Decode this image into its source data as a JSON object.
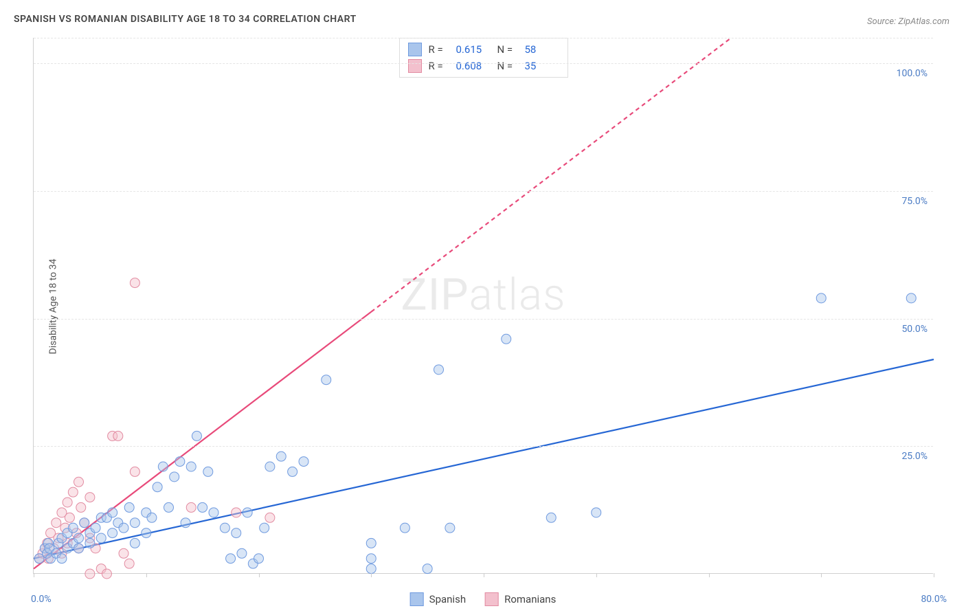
{
  "title": "SPANISH VS ROMANIAN DISABILITY AGE 18 TO 34 CORRELATION CHART",
  "source": "Source: ZipAtlas.com",
  "ylabel": "Disability Age 18 to 34",
  "watermark_zip": "ZIP",
  "watermark_atlas": "atlas",
  "chart": {
    "type": "scatter",
    "xlim": [
      0,
      80
    ],
    "ylim": [
      0,
      105
    ],
    "xtick_labels": {
      "0": "0.0%",
      "80": "80.0%"
    },
    "xtick_positions": [
      0,
      10,
      20,
      30,
      40,
      50,
      60,
      70,
      80
    ],
    "ytick_labels": {
      "25": "25.0%",
      "50": "50.0%",
      "75": "75.0%",
      "100": "100.0%"
    },
    "ytick_positions": [
      25,
      50,
      75,
      100,
      105
    ],
    "grid_color": "#e5e5e5",
    "background_color": "#ffffff",
    "marker_radius": 7,
    "marker_opacity": 0.45,
    "line_width": 2.2
  },
  "series": {
    "spanish": {
      "label": "Spanish",
      "color_fill": "#a9c5ec",
      "color_stroke": "#6f9adf",
      "line_color": "#2566d4",
      "R": "0.615",
      "N": "58",
      "trend": {
        "x1": 0,
        "y1": 3,
        "x2": 80,
        "y2": 42,
        "dashed_from_x": null
      },
      "points": [
        [
          0.5,
          3
        ],
        [
          1,
          5
        ],
        [
          1.2,
          4
        ],
        [
          1.3,
          6
        ],
        [
          1.4,
          5
        ],
        [
          1.5,
          3
        ],
        [
          2,
          4
        ],
        [
          2.2,
          6
        ],
        [
          2.5,
          7
        ],
        [
          2.5,
          3
        ],
        [
          3,
          8
        ],
        [
          3,
          5
        ],
        [
          3.5,
          6
        ],
        [
          3.5,
          9
        ],
        [
          4,
          7
        ],
        [
          4,
          5
        ],
        [
          4.5,
          10
        ],
        [
          5,
          8
        ],
        [
          5,
          6
        ],
        [
          5.5,
          9
        ],
        [
          6,
          11
        ],
        [
          6,
          7
        ],
        [
          6.5,
          11
        ],
        [
          7,
          8
        ],
        [
          7,
          12
        ],
        [
          7.5,
          10
        ],
        [
          8,
          9
        ],
        [
          8.5,
          13
        ],
        [
          9,
          10
        ],
        [
          9,
          6
        ],
        [
          10,
          12
        ],
        [
          10,
          8
        ],
        [
          10.5,
          11
        ],
        [
          11,
          17
        ],
        [
          11.5,
          21
        ],
        [
          12,
          13
        ],
        [
          12.5,
          19
        ],
        [
          13,
          22
        ],
        [
          13.5,
          10
        ],
        [
          14,
          21
        ],
        [
          14.5,
          27
        ],
        [
          15,
          13
        ],
        [
          15.5,
          20
        ],
        [
          16,
          12
        ],
        [
          17,
          9
        ],
        [
          17.5,
          3
        ],
        [
          18,
          8
        ],
        [
          18.5,
          4
        ],
        [
          19,
          12
        ],
        [
          19.5,
          2
        ],
        [
          20,
          3
        ],
        [
          20.5,
          9
        ],
        [
          21,
          21
        ],
        [
          22,
          23
        ],
        [
          23,
          20
        ],
        [
          24,
          22
        ],
        [
          26,
          38
        ],
        [
          30,
          6
        ],
        [
          30,
          3
        ],
        [
          30,
          1
        ],
        [
          33,
          9
        ],
        [
          35,
          1
        ],
        [
          36,
          40
        ],
        [
          37,
          9
        ],
        [
          42,
          46
        ],
        [
          46,
          11
        ],
        [
          50,
          12
        ],
        [
          70,
          54
        ],
        [
          78,
          54
        ]
      ]
    },
    "romanians": {
      "label": "Romanians",
      "color_fill": "#f3c0cd",
      "color_stroke": "#e28ba1",
      "line_color": "#e84a7a",
      "R": "0.608",
      "N": "35",
      "trend": {
        "x1": 0,
        "y1": 1,
        "x2": 62,
        "y2": 105,
        "dashed_from_x": 30
      },
      "points": [
        [
          0.5,
          3
        ],
        [
          0.8,
          4
        ],
        [
          1,
          5
        ],
        [
          1.2,
          6
        ],
        [
          1.3,
          3
        ],
        [
          1.5,
          8
        ],
        [
          1.8,
          5
        ],
        [
          2,
          10
        ],
        [
          2.2,
          7
        ],
        [
          2.5,
          12
        ],
        [
          2.5,
          4
        ],
        [
          2.8,
          9
        ],
        [
          3,
          14
        ],
        [
          3,
          6
        ],
        [
          3.2,
          11
        ],
        [
          3.5,
          16
        ],
        [
          3.8,
          8
        ],
        [
          4,
          18
        ],
        [
          4,
          5
        ],
        [
          4.2,
          13
        ],
        [
          4.5,
          10
        ],
        [
          5,
          15
        ],
        [
          5,
          7
        ],
        [
          5,
          0
        ],
        [
          5.5,
          5
        ],
        [
          6,
          1
        ],
        [
          6.5,
          0
        ],
        [
          7,
          27
        ],
        [
          7.5,
          27
        ],
        [
          8,
          4
        ],
        [
          8.5,
          2
        ],
        [
          9,
          20
        ],
        [
          9,
          57
        ],
        [
          14,
          13
        ],
        [
          18,
          12
        ],
        [
          21,
          11
        ]
      ]
    }
  },
  "legend_labels": {
    "R": "R =",
    "N": "N ="
  }
}
